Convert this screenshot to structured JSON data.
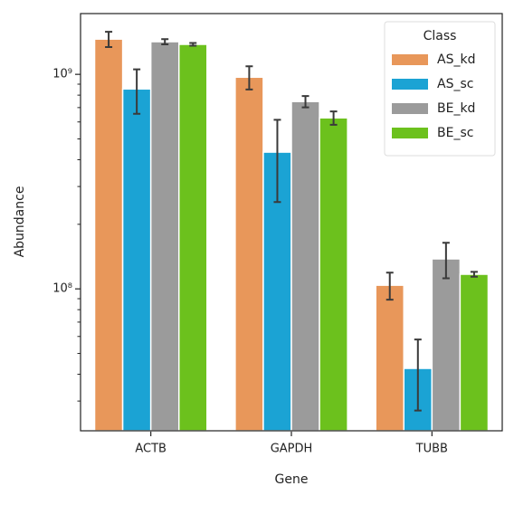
{
  "chart_data": {
    "type": "bar",
    "xlabel": "Gene",
    "ylabel": "Abundance",
    "categories": [
      "ACTB",
      "GAPDH",
      "TUBB"
    ],
    "series": [
      {
        "name": "AS_kd",
        "color": "#e8975a",
        "values": [
          1460000000,
          970000000,
          104000000
        ],
        "errors": [
          120000000,
          120000000,
          15000000
        ]
      },
      {
        "name": "AS_sc",
        "color": "#1ba3d4",
        "values": [
          855000000,
          434000000,
          42600000
        ],
        "errors": [
          200000000,
          180000000,
          15500000
        ]
      },
      {
        "name": "BE_kd",
        "color": "#9b9b9b",
        "values": [
          1420000000,
          747000000,
          138000000
        ],
        "errors": [
          40000000,
          45000000,
          26000000
        ]
      },
      {
        "name": "BE_sc",
        "color": "#6cc11d",
        "values": [
          1380000000,
          627000000,
          117000000
        ],
        "errors": [
          20000000,
          45000000,
          3000000
        ]
      }
    ],
    "legend_title": "Class",
    "legend": "upper right",
    "log_y": true,
    "ylim": [
      21800000,
      1920000000
    ],
    "yticks": [
      {
        "value": 100000000,
        "label": "10⁸"
      },
      {
        "value": 1000000000,
        "label": "10⁹"
      }
    ],
    "yminorticks": [
      30000000,
      40000000,
      50000000,
      60000000,
      70000000,
      80000000,
      90000000,
      200000000,
      300000000,
      400000000,
      500000000,
      600000000,
      700000000,
      800000000,
      900000000
    ]
  }
}
